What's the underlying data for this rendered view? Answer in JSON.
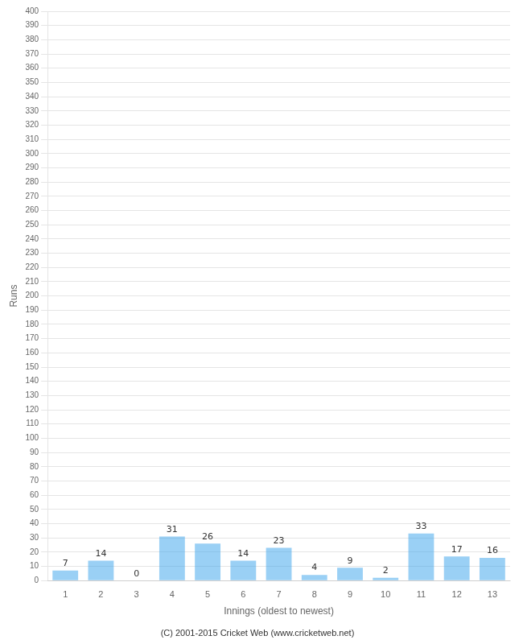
{
  "chart_data": {
    "type": "bar",
    "xlabel": "Innings (oldest to newest)",
    "ylabel": "Runs",
    "categories": [
      1,
      2,
      3,
      4,
      5,
      6,
      7,
      8,
      9,
      10,
      11,
      12,
      13
    ],
    "values": [
      7,
      14,
      0,
      31,
      26,
      14,
      23,
      4,
      9,
      2,
      33,
      17,
      16
    ],
    "ylim": [
      0,
      400
    ],
    "yticks": [
      0,
      10,
      20,
      30,
      40,
      50,
      60,
      70,
      80,
      90,
      100,
      110,
      120,
      130,
      140,
      150,
      160,
      170,
      180,
      190,
      200,
      210,
      220,
      230,
      240,
      250,
      260,
      270,
      280,
      290,
      300,
      310,
      320,
      330,
      340,
      350,
      360,
      370,
      380,
      390,
      400
    ],
    "grid": true,
    "data_labels": true,
    "annotations": [
      "(C) 2001-2015 Cricket Web (www.cricketweb.net)"
    ]
  }
}
